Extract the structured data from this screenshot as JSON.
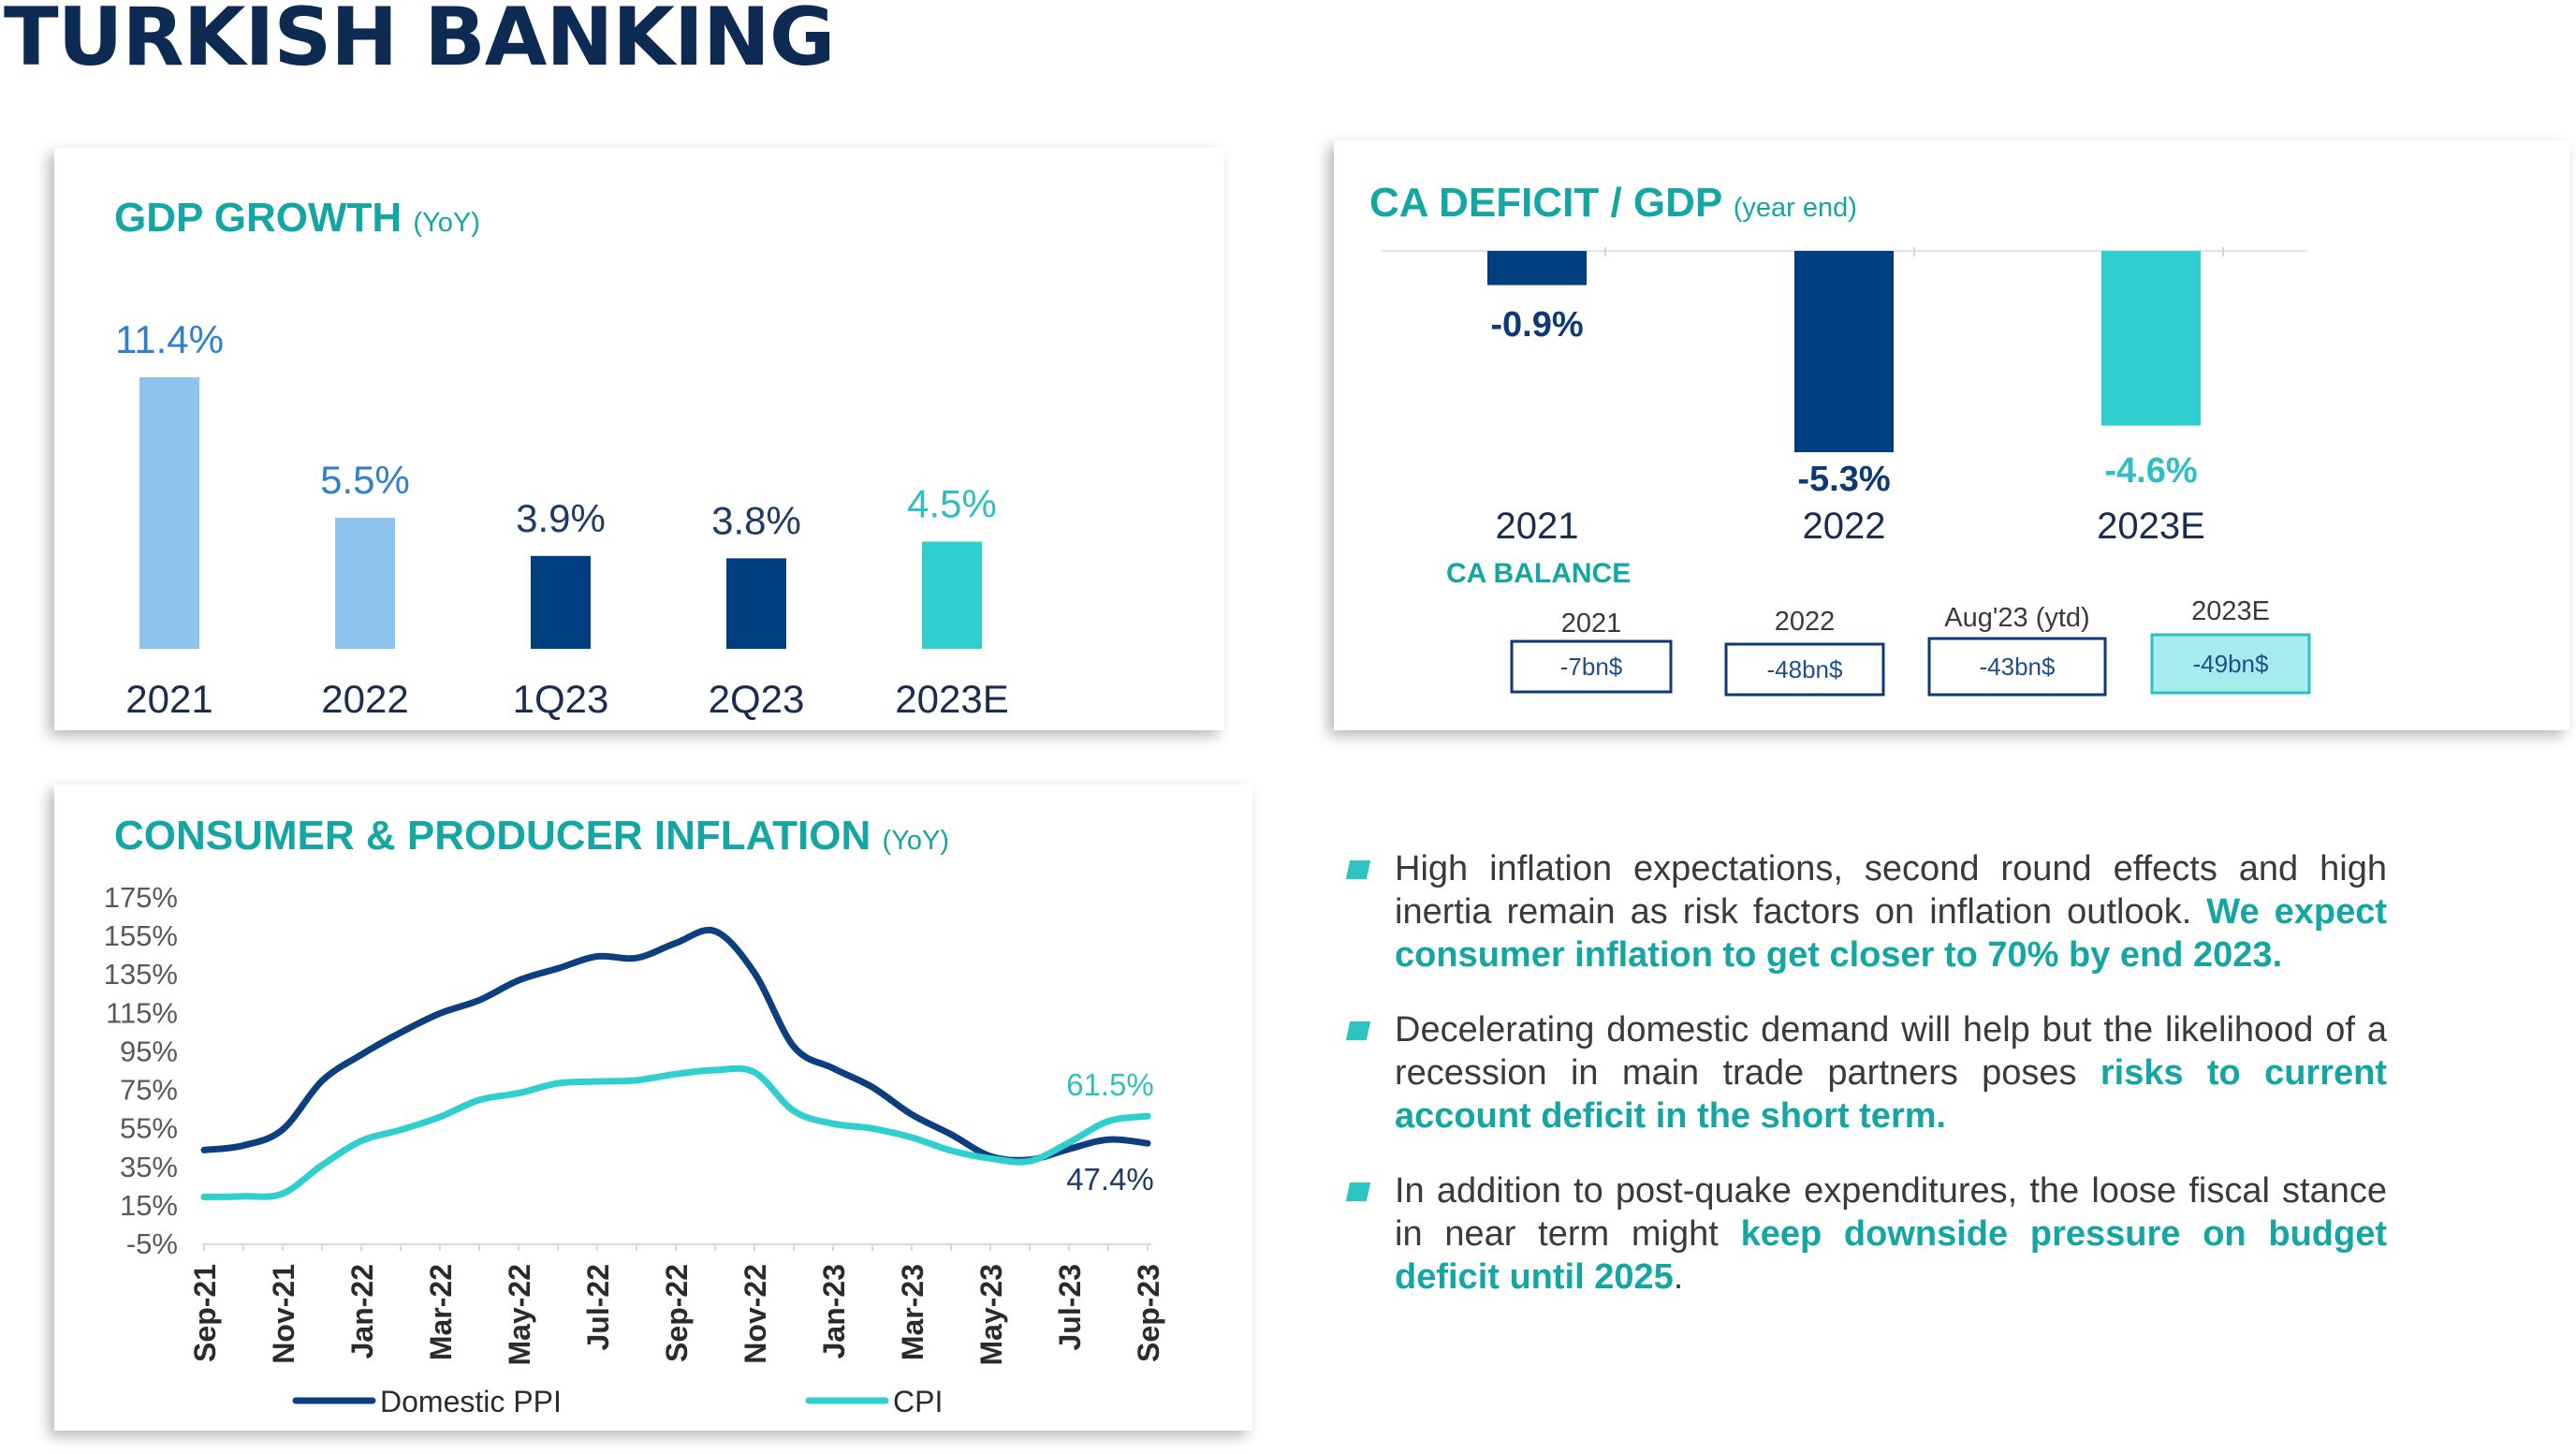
{
  "page_title": "TURKISH BANKING",
  "colors": {
    "navy": "#0d2a52",
    "teal_title": "#13a6a2",
    "light_blue": "#8ec3ee",
    "dark_blue": "#003f7f",
    "turquoise": "#2fcfcf",
    "ppi_line": "#0b3f80",
    "cpi_line": "#2fcfcf",
    "axis_text": "#595959"
  },
  "gdp": {
    "title": "GDP GROWTH",
    "subtitle": "(YoY)"
  },
  "ca": {
    "title": "CA DEFICIT / GDP",
    "subtitle": "(year end)",
    "balance_title": "CA  BALANCE",
    "balance": [
      {
        "label": "2021",
        "value": "-7bn$"
      },
      {
        "label": "2022",
        "value": "-48bn$"
      },
      {
        "label": "Aug'23 (ytd)",
        "value": "-43bn$"
      },
      {
        "label": "2023E",
        "value": "-49bn$"
      }
    ]
  },
  "inflation": {
    "title": "CONSUMER & PRODUCER INFLATION",
    "subtitle": "(YoY)"
  },
  "bullets": [
    {
      "text": "High inflation expectations, second round effects and high inertia remain as risk factors on inflation outlook. ",
      "highlight": "We expect consumer inflation to get closer to 70% by end 2023.",
      "tail": ""
    },
    {
      "text": "Decelerating domestic demand will help but the likelihood of a recession in main trade partners poses ",
      "highlight": "risks to current account deficit in the short term.",
      "tail": ""
    },
    {
      "text": "In addition to post-quake expenditures, the loose fiscal stance in near term might ",
      "highlight": "keep downside pressure on budget deficit until 2025",
      "tail": "."
    }
  ],
  "chart_data": [
    {
      "type": "bar",
      "title": "GDP GROWTH",
      "categories": [
        "2021",
        "2022",
        "1Q23",
        "2Q23",
        "2023E"
      ],
      "values": [
        11.4,
        5.5,
        3.9,
        3.8,
        4.5
      ],
      "value_labels": [
        "11.4%",
        "5.5%",
        "3.9%",
        "3.8%",
        "4.5%"
      ],
      "bar_colors": [
        "#8ec3ee",
        "#8ec3ee",
        "#003f7f",
        "#003f7f",
        "#2fcfcf"
      ],
      "label_colors": [
        "#2f7fcc",
        "#2f7fcc",
        "#1f3b66",
        "#1f3b66",
        "#2fbfbf"
      ],
      "ylim": [
        0,
        12
      ],
      "grid": false
    },
    {
      "type": "bar",
      "title": "CA DEFICIT / GDP",
      "categories": [
        "2021",
        "2022",
        "2023E"
      ],
      "values": [
        -0.9,
        -5.3,
        -4.6
      ],
      "value_labels": [
        "-0.9%",
        "-5.3%",
        "-4.6%"
      ],
      "bar_colors": [
        "#003f7f",
        "#003f7f",
        "#2fcfcf"
      ],
      "label_colors": [
        "#0d3a74",
        "#0d3a74",
        "#2fbfbf"
      ],
      "ylim": [
        -5.3,
        0
      ],
      "grid": false
    },
    {
      "type": "line",
      "title": "CONSUMER & PRODUCER INFLATION",
      "x": [
        "Sep-21",
        "Oct-21",
        "Nov-21",
        "Dec-21",
        "Jan-22",
        "Feb-22",
        "Mar-22",
        "Apr-22",
        "May-22",
        "Jun-22",
        "Jul-22",
        "Aug-22",
        "Sep-22",
        "Oct-22",
        "Nov-22",
        "Dec-22",
        "Jan-23",
        "Feb-23",
        "Mar-23",
        "Apr-23",
        "May-23",
        "Jun-23",
        "Jul-23",
        "Aug-23",
        "Sep-23"
      ],
      "x_tick_labels": [
        "Sep-21",
        "Nov-21",
        "Jan-22",
        "Mar-22",
        "May-22",
        "Jul-22",
        "Sep-22",
        "Nov-22",
        "Jan-23",
        "Mar-23",
        "May-23",
        "Jul-23",
        "Sep-23"
      ],
      "y_ticks": [
        -5,
        15,
        35,
        55,
        75,
        95,
        115,
        135,
        155,
        175
      ],
      "y_tick_labels": [
        "-5%",
        "15%",
        "35%",
        "55%",
        "75%",
        "95%",
        "115%",
        "135%",
        "155%",
        "175%"
      ],
      "ylim": [
        -5,
        175
      ],
      "series": [
        {
          "name": "Domestic PPI",
          "color": "#0b3f80",
          "values": [
            43.96,
            46.31,
            54.62,
            79.89,
            93.53,
            105.01,
            114.97,
            121.82,
            132.16,
            138.31,
            144.61,
            143.75,
            151.5,
            157.69,
            136.02,
            97.72,
            86.46,
            76.61,
            62.45,
            52.11,
            40.76,
            38.94,
            44.5,
            49.41,
            47.44
          ],
          "end_label": "47.4%"
        },
        {
          "name": "CPI",
          "color": "#2fcfcf",
          "values": [
            19.58,
            19.89,
            21.31,
            36.08,
            48.69,
            54.44,
            61.14,
            69.97,
            73.5,
            78.62,
            79.6,
            80.21,
            83.45,
            85.51,
            84.39,
            64.27,
            57.68,
            55.18,
            50.51,
            43.68,
            39.59,
            38.21,
            47.83,
            58.94,
            61.53
          ],
          "end_label": "61.5%"
        }
      ],
      "legend": "bottom",
      "grid": false
    }
  ]
}
